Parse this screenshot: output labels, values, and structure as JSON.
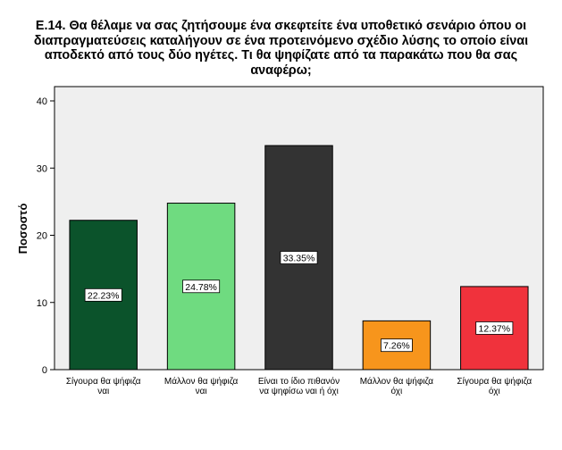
{
  "chart_data": {
    "type": "bar",
    "title_lines": [
      "Ε.14. Θα θέλαμε να σας ζητήσουμε ένα σκεφτείτε ένα υποθετικό σενάριο όπου οι",
      "διαπραγματεύσεις καταλήγουν σε ένα προτεινόμενο σχέδιο λύσης το οποίο είναι",
      "αποδεκτό από τους δύο ηγέτες. Τι θα ψηφίζατε από τα παρακάτω που θα σας",
      "αναφέρω;"
    ],
    "ylabel": "Ποσοστό",
    "ylim": [
      0,
      40
    ],
    "yticks": [
      "0",
      "10",
      "20",
      "30",
      "40"
    ],
    "categories": [
      [
        "Σίγουρα θα ψήφιζα",
        "ναι"
      ],
      [
        "Μάλλον θα ψήφιζα",
        "ναι"
      ],
      [
        "Είναι το ίδιο πιθανόν",
        "να ψηφίσω ναι ή όχι"
      ],
      [
        "Μάλλον θα ψήφιζα",
        "όχι"
      ],
      [
        "Σίγουρα θα ψήφιζα",
        "όχι"
      ]
    ],
    "values": [
      22.23,
      24.78,
      33.35,
      7.26,
      12.37
    ],
    "data_labels": [
      "22.23%",
      "24.78%",
      "33.35%",
      "7.26%",
      "12.37%"
    ],
    "colors": [
      "#0b532b",
      "#6fdb80",
      "#333333",
      "#f7951c",
      "#f0323c"
    ],
    "plot_background": "#efefef",
    "grid": false,
    "legend": "none"
  }
}
